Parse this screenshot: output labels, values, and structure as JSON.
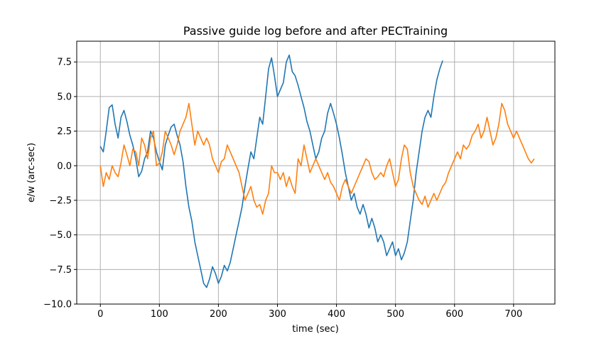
{
  "chart_data": {
    "type": "line",
    "title": "Passive guide log before and after PECTraining",
    "xlabel": "time (sec)",
    "ylabel": "e/w (arc-sec)",
    "xlim": [
      -40,
      770
    ],
    "ylim": [
      -10,
      9
    ],
    "xticks": [
      0,
      100,
      200,
      300,
      400,
      500,
      600,
      700
    ],
    "yticks": [
      -10.0,
      -7.5,
      -5.0,
      -2.5,
      0.0,
      2.5,
      5.0,
      7.5
    ],
    "xtick_labels": [
      "0",
      "100",
      "200",
      "300",
      "400",
      "500",
      "600",
      "700"
    ],
    "ytick_labels": [
      "−10.0",
      "−7.5",
      "−5.0",
      "−2.5",
      "0.0",
      "2.5",
      "5.0",
      "7.5"
    ],
    "grid": true,
    "series": [
      {
        "color": "#1f77b4",
        "x": [
          0,
          5,
          10,
          15,
          20,
          25,
          30,
          35,
          40,
          45,
          50,
          55,
          60,
          65,
          70,
          75,
          80,
          85,
          90,
          95,
          100,
          105,
          110,
          115,
          120,
          125,
          130,
          135,
          140,
          145,
          150,
          155,
          160,
          165,
          170,
          175,
          180,
          185,
          190,
          195,
          200,
          205,
          210,
          215,
          220,
          225,
          230,
          235,
          240,
          245,
          250,
          255,
          260,
          265,
          270,
          275,
          280,
          285,
          290,
          295,
          300,
          305,
          310,
          315,
          320,
          325,
          330,
          335,
          340,
          345,
          350,
          355,
          360,
          365,
          370,
          375,
          380,
          385,
          390,
          395,
          400,
          405,
          410,
          415,
          420,
          425,
          430,
          435,
          440,
          445,
          450,
          455,
          460,
          465,
          470,
          475,
          480,
          485,
          490,
          495,
          500,
          505,
          510,
          515,
          520,
          525,
          530,
          535,
          540,
          545,
          550,
          555,
          560,
          565,
          570,
          575,
          580
        ],
        "y": [
          1.4,
          1.0,
          2.5,
          4.2,
          4.4,
          3.0,
          2.0,
          3.5,
          4.0,
          3.2,
          2.2,
          1.5,
          0.5,
          -0.8,
          -0.4,
          0.5,
          1.0,
          2.5,
          2.0,
          1.0,
          0.3,
          -0.3,
          1.5,
          2.2,
          2.8,
          3.0,
          2.2,
          1.5,
          0.3,
          -1.5,
          -3.0,
          -4.0,
          -5.5,
          -6.5,
          -7.5,
          -8.5,
          -8.8,
          -8.2,
          -7.3,
          -7.8,
          -8.5,
          -8.0,
          -7.2,
          -7.6,
          -7.0,
          -6.0,
          -5.0,
          -4.0,
          -3.0,
          -1.5,
          -0.2,
          1.0,
          0.5,
          2.0,
          3.5,
          3.0,
          5.0,
          7.0,
          7.8,
          6.5,
          5.0,
          5.5,
          6.0,
          7.5,
          8.0,
          6.8,
          6.5,
          5.8,
          5.0,
          4.2,
          3.2,
          2.5,
          1.5,
          0.5,
          1.0,
          2.0,
          2.5,
          3.8,
          4.5,
          3.8,
          3.0,
          2.0,
          0.8,
          -0.5,
          -1.5,
          -2.5,
          -2.0,
          -3.0,
          -3.5,
          -2.8,
          -3.5,
          -4.5,
          -3.8,
          -4.5,
          -5.5,
          -5.0,
          -5.5,
          -6.5,
          -6.0,
          -5.5,
          -6.5,
          -6.0,
          -6.8,
          -6.3,
          -5.5,
          -4.0,
          -2.5,
          -0.5,
          1.0,
          2.5,
          3.5,
          4.0,
          3.5,
          5.0,
          6.2,
          7.0,
          7.6
        ]
      },
      {
        "color": "#ff7f0e",
        "x": [
          0,
          5,
          10,
          15,
          20,
          25,
          30,
          35,
          40,
          45,
          50,
          55,
          60,
          65,
          70,
          75,
          80,
          85,
          90,
          95,
          100,
          105,
          110,
          115,
          120,
          125,
          130,
          135,
          140,
          145,
          150,
          155,
          160,
          165,
          170,
          175,
          180,
          185,
          190,
          195,
          200,
          205,
          210,
          215,
          220,
          225,
          230,
          235,
          240,
          245,
          250,
          255,
          260,
          265,
          270,
          275,
          280,
          285,
          290,
          295,
          300,
          305,
          310,
          315,
          320,
          325,
          330,
          335,
          340,
          345,
          350,
          355,
          360,
          365,
          370,
          375,
          380,
          385,
          390,
          395,
          400,
          405,
          410,
          415,
          420,
          425,
          430,
          435,
          440,
          445,
          450,
          455,
          460,
          465,
          470,
          475,
          480,
          485,
          490,
          495,
          500,
          505,
          510,
          515,
          520,
          525,
          530,
          535,
          540,
          545,
          550,
          555,
          560,
          565,
          570,
          575,
          580,
          585,
          590,
          595,
          600,
          605,
          610,
          615,
          620,
          625,
          630,
          635,
          640,
          645,
          650,
          655,
          660,
          665,
          670,
          675,
          680,
          685,
          690,
          695,
          700,
          705,
          710,
          715,
          720,
          725,
          730,
          735
        ],
        "y": [
          0.0,
          -1.5,
          -0.5,
          -1.0,
          0.0,
          -0.5,
          -0.8,
          0.2,
          1.5,
          0.8,
          0.0,
          1.2,
          1.0,
          0.0,
          2.0,
          1.5,
          0.5,
          2.0,
          2.5,
          0.0,
          0.2,
          1.0,
          2.5,
          2.0,
          1.5,
          0.8,
          1.5,
          2.5,
          3.0,
          3.5,
          4.5,
          3.0,
          1.5,
          2.5,
          2.0,
          1.5,
          2.0,
          1.5,
          0.5,
          0.0,
          -0.5,
          0.3,
          0.5,
          1.5,
          1.0,
          0.5,
          0.0,
          -0.5,
          -1.5,
          -2.5,
          -2.0,
          -1.5,
          -2.5,
          -3.0,
          -2.8,
          -3.5,
          -2.5,
          -2.0,
          0.0,
          -0.5,
          -0.5,
          -1.0,
          -0.5,
          -1.5,
          -0.8,
          -1.5,
          -2.0,
          0.5,
          0.0,
          1.5,
          0.5,
          -0.5,
          0.0,
          0.5,
          0.0,
          -0.5,
          -1.0,
          -0.5,
          -1.2,
          -1.5,
          -2.0,
          -2.5,
          -1.5,
          -1.0,
          -1.5,
          -2.0,
          -1.5,
          -1.0,
          -0.5,
          0.0,
          0.5,
          0.3,
          -0.5,
          -1.0,
          -0.8,
          -0.5,
          -0.8,
          0.0,
          0.5,
          -0.5,
          -1.5,
          -1.0,
          0.5,
          1.5,
          1.2,
          -0.5,
          -1.5,
          -2.0,
          -2.5,
          -2.8,
          -2.2,
          -3.0,
          -2.5,
          -2.0,
          -2.5,
          -2.0,
          -1.5,
          -1.2,
          -0.5,
          0.0,
          0.5,
          1.0,
          0.5,
          1.5,
          1.2,
          1.5,
          2.2,
          2.5,
          3.0,
          2.0,
          2.5,
          3.5,
          2.5,
          1.5,
          2.0,
          3.0,
          4.5,
          4.0,
          3.0,
          2.5,
          2.0,
          2.5,
          2.0,
          1.5,
          1.0,
          0.5,
          0.2,
          0.5
        ]
      }
    ]
  }
}
